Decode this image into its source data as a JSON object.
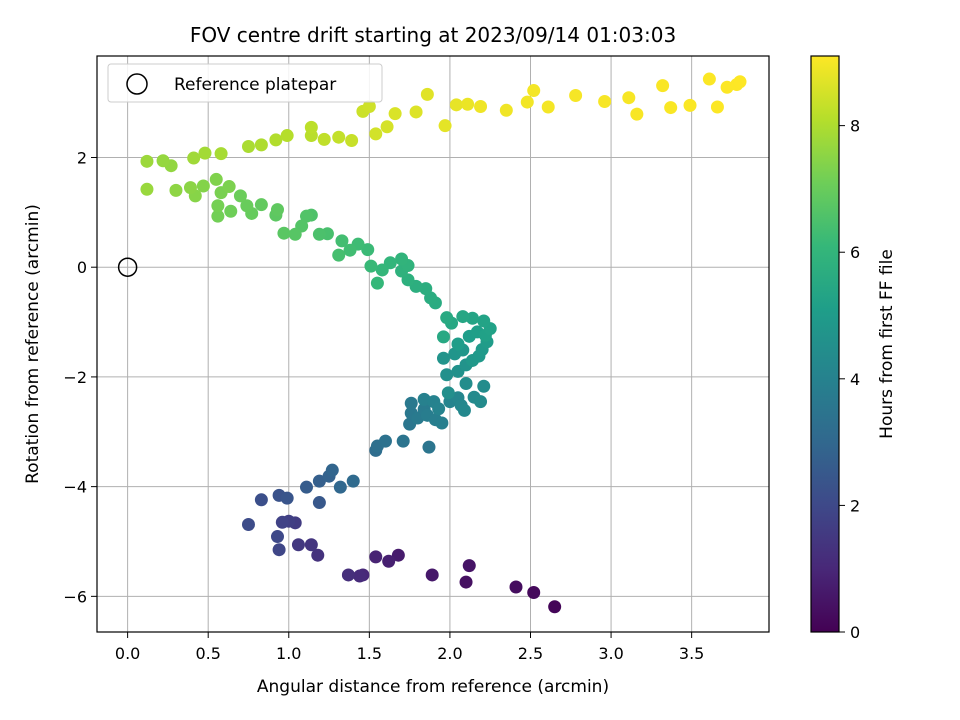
{
  "chart_data": {
    "type": "scatter",
    "title": "FOV centre drift starting at 2023/09/14 01:03:03",
    "xlabel": "Angular distance from reference (arcmin)",
    "ylabel": "Rotation from reference (arcmin)",
    "colorbar_label": "Hours from first FF file",
    "xlim": [
      -0.19,
      3.98
    ],
    "ylim": [
      -6.65,
      3.85
    ],
    "clim": [
      0,
      9.1
    ],
    "x_ticks": [
      "0.0",
      "0.5",
      "1.0",
      "1.5",
      "2.0",
      "2.5",
      "3.0",
      "3.5"
    ],
    "x_tick_values": [
      0,
      0.5,
      1.0,
      1.5,
      2.0,
      2.5,
      3.0,
      3.5
    ],
    "y_ticks": [
      "2",
      "0",
      "−2",
      "−4",
      "−6"
    ],
    "y_tick_values": [
      2,
      0,
      -2,
      -4,
      -6
    ],
    "colorbar_ticks": [
      "0",
      "2",
      "4",
      "6",
      "8"
    ],
    "colorbar_tick_values": [
      0,
      2,
      4,
      6,
      8
    ],
    "grid": true,
    "colormap": "viridis",
    "legend": {
      "position": "top-left",
      "entries": [
        {
          "label": "Reference platepar",
          "marker": "open-circle"
        }
      ]
    },
    "reference_point": {
      "x": 0.0,
      "y": 0.0
    },
    "points": [
      [
        2.65,
        -6.19,
        0.1
      ],
      [
        2.52,
        -5.93,
        0.2
      ],
      [
        2.41,
        -5.83,
        0.3
      ],
      [
        2.1,
        -5.74,
        0.4
      ],
      [
        2.12,
        -5.44,
        0.5
      ],
      [
        1.89,
        -5.61,
        0.6
      ],
      [
        1.68,
        -5.25,
        0.7
      ],
      [
        1.62,
        -5.36,
        0.8
      ],
      [
        1.54,
        -5.28,
        0.9
      ],
      [
        1.46,
        -5.61,
        1.0
      ],
      [
        1.44,
        -5.63,
        1.1
      ],
      [
        1.37,
        -5.61,
        1.2
      ],
      [
        1.18,
        -5.25,
        1.3
      ],
      [
        1.14,
        -5.06,
        1.4
      ],
      [
        1.06,
        -5.06,
        1.5
      ],
      [
        1.04,
        -4.66,
        1.6
      ],
      [
        1.0,
        -4.63,
        1.7
      ],
      [
        0.96,
        -4.65,
        1.8
      ],
      [
        0.94,
        -5.15,
        1.9
      ],
      [
        0.93,
        -4.91,
        2.0
      ],
      [
        0.75,
        -4.69,
        2.1
      ],
      [
        0.83,
        -4.24,
        2.2
      ],
      [
        0.94,
        -4.16,
        2.3
      ],
      [
        0.99,
        -4.21,
        2.4
      ],
      [
        1.19,
        -4.29,
        2.5
      ],
      [
        1.11,
        -4.01,
        2.6
      ],
      [
        1.19,
        -3.9,
        2.7
      ],
      [
        1.25,
        -3.81,
        2.8
      ],
      [
        1.27,
        -3.7,
        2.9
      ],
      [
        1.32,
        -4.01,
        3.0
      ],
      [
        1.4,
        -3.9,
        3.1
      ],
      [
        1.54,
        -3.34,
        3.2
      ],
      [
        1.55,
        -3.26,
        3.3
      ],
      [
        1.6,
        -3.17,
        3.4
      ],
      [
        1.71,
        -3.17,
        3.45
      ],
      [
        1.87,
        -3.28,
        3.5
      ],
      [
        1.75,
        -2.86,
        3.55
      ],
      [
        1.76,
        -2.66,
        3.6
      ],
      [
        1.76,
        -2.48,
        3.65
      ],
      [
        1.8,
        -2.75,
        3.7
      ],
      [
        1.84,
        -2.59,
        3.75
      ],
      [
        1.86,
        -2.7,
        3.8
      ],
      [
        1.91,
        -2.78,
        3.85
      ],
      [
        1.95,
        -2.84,
        3.9
      ],
      [
        1.84,
        -2.41,
        3.95
      ],
      [
        1.9,
        -2.45,
        4.0
      ],
      [
        1.93,
        -2.58,
        4.05
      ],
      [
        2.0,
        -2.45,
        4.1
      ],
      [
        2.05,
        -2.38,
        4.15
      ],
      [
        2.07,
        -2.52,
        4.2
      ],
      [
        2.09,
        -2.61,
        4.25
      ],
      [
        2.15,
        -2.37,
        4.3
      ],
      [
        2.19,
        -2.45,
        4.35
      ],
      [
        2.21,
        -2.17,
        4.4
      ],
      [
        2.1,
        -2.12,
        4.45
      ],
      [
        1.99,
        -2.29,
        4.5
      ],
      [
        1.98,
        -1.96,
        4.55
      ],
      [
        2.05,
        -1.9,
        4.6
      ],
      [
        2.1,
        -1.78,
        4.65
      ],
      [
        1.96,
        -1.66,
        4.7
      ],
      [
        2.03,
        -1.58,
        4.75
      ],
      [
        2.08,
        -1.51,
        4.8
      ],
      [
        2.14,
        -1.7,
        4.85
      ],
      [
        2.18,
        -1.62,
        4.9
      ],
      [
        2.2,
        -1.5,
        4.95
      ],
      [
        2.23,
        -1.36,
        5.0
      ],
      [
        2.05,
        -1.4,
        5.05
      ],
      [
        2.12,
        -1.26,
        5.1
      ],
      [
        2.17,
        -1.18,
        5.15
      ],
      [
        2.22,
        -1.24,
        5.2
      ],
      [
        2.25,
        -1.12,
        5.25
      ],
      [
        2.21,
        -0.98,
        5.3
      ],
      [
        2.14,
        -0.93,
        5.35
      ],
      [
        2.08,
        -0.9,
        5.4
      ],
      [
        2.01,
        -1.02,
        5.45
      ],
      [
        1.96,
        -1.27,
        5.5
      ],
      [
        1.98,
        -0.92,
        5.55
      ],
      [
        1.91,
        -0.65,
        5.6
      ],
      [
        1.88,
        -0.56,
        5.65
      ],
      [
        1.85,
        -0.39,
        5.7
      ],
      [
        1.79,
        -0.35,
        5.75
      ],
      [
        1.74,
        -0.23,
        5.8
      ],
      [
        1.7,
        -0.07,
        5.85
      ],
      [
        1.74,
        0.03,
        5.9
      ],
      [
        1.7,
        0.15,
        5.95
      ],
      [
        1.63,
        0.08,
        6.0
      ],
      [
        1.58,
        -0.05,
        6.05
      ],
      [
        1.55,
        -0.29,
        6.1
      ],
      [
        1.51,
        0.02,
        6.15
      ],
      [
        1.49,
        0.32,
        6.2
      ],
      [
        1.43,
        0.42,
        6.25
      ],
      [
        1.38,
        0.31,
        6.3
      ],
      [
        1.33,
        0.48,
        6.35
      ],
      [
        1.31,
        0.22,
        6.4
      ],
      [
        1.24,
        0.61,
        6.45
      ],
      [
        1.19,
        0.6,
        6.5
      ],
      [
        1.14,
        0.95,
        6.55
      ],
      [
        1.11,
        0.93,
        6.6
      ],
      [
        1.08,
        0.75,
        6.65
      ],
      [
        1.04,
        0.6,
        6.7
      ],
      [
        0.97,
        0.62,
        6.75
      ],
      [
        0.92,
        0.95,
        6.8
      ],
      [
        0.93,
        1.05,
        6.85
      ],
      [
        0.83,
        1.14,
        6.9
      ],
      [
        0.77,
        0.98,
        6.95
      ],
      [
        0.74,
        1.12,
        7.0
      ],
      [
        0.7,
        1.3,
        7.05
      ],
      [
        0.64,
        1.02,
        7.1
      ],
      [
        0.56,
        0.93,
        7.15
      ],
      [
        0.56,
        1.12,
        7.2
      ],
      [
        0.58,
        1.36,
        7.25
      ],
      [
        0.63,
        1.47,
        7.3
      ],
      [
        0.55,
        1.6,
        7.35
      ],
      [
        0.47,
        1.48,
        7.4
      ],
      [
        0.42,
        1.3,
        7.45
      ],
      [
        0.39,
        1.45,
        7.5
      ],
      [
        0.3,
        1.4,
        7.55
      ],
      [
        0.27,
        1.85,
        7.6
      ],
      [
        0.22,
        1.94,
        7.65
      ],
      [
        0.12,
        1.42,
        7.7
      ],
      [
        0.12,
        1.93,
        7.75
      ],
      [
        0.41,
        1.99,
        7.8
      ],
      [
        0.48,
        2.08,
        7.85
      ],
      [
        0.58,
        2.07,
        7.9
      ],
      [
        0.75,
        2.2,
        7.95
      ],
      [
        0.83,
        2.23,
        8.0
      ],
      [
        0.92,
        2.32,
        8.05
      ],
      [
        0.99,
        2.4,
        8.1
      ],
      [
        1.14,
        2.4,
        8.15
      ],
      [
        1.14,
        2.55,
        8.2
      ],
      [
        1.22,
        2.33,
        8.25
      ],
      [
        1.31,
        2.37,
        8.3
      ],
      [
        1.39,
        2.31,
        8.35
      ],
      [
        1.46,
        2.84,
        8.4
      ],
      [
        1.5,
        2.93,
        8.45
      ],
      [
        1.54,
        2.43,
        8.5
      ],
      [
        1.61,
        2.56,
        8.55
      ],
      [
        1.66,
        2.8,
        8.6
      ],
      [
        1.79,
        2.83,
        8.65
      ],
      [
        1.86,
        3.15,
        8.7
      ],
      [
        1.97,
        2.58,
        8.75
      ],
      [
        2.04,
        2.96,
        8.8
      ],
      [
        2.11,
        2.97,
        8.85
      ],
      [
        2.19,
        2.93,
        8.9
      ],
      [
        2.35,
        2.86,
        8.92
      ],
      [
        2.48,
        3.01,
        8.95
      ],
      [
        2.52,
        3.22,
        8.97
      ],
      [
        2.61,
        2.92,
        8.98
      ],
      [
        2.78,
        3.13,
        9.0
      ],
      [
        2.96,
        3.02,
        9.01
      ],
      [
        3.11,
        3.09,
        9.02
      ],
      [
        3.16,
        2.79,
        9.03
      ],
      [
        3.32,
        3.31,
        9.04
      ],
      [
        3.37,
        2.91,
        9.05
      ],
      [
        3.49,
        2.95,
        9.06
      ],
      [
        3.61,
        3.43,
        9.07
      ],
      [
        3.66,
        2.92,
        9.08
      ],
      [
        3.72,
        3.28,
        9.085
      ],
      [
        3.78,
        3.33,
        9.09
      ],
      [
        3.8,
        3.38,
        9.1
      ]
    ]
  }
}
